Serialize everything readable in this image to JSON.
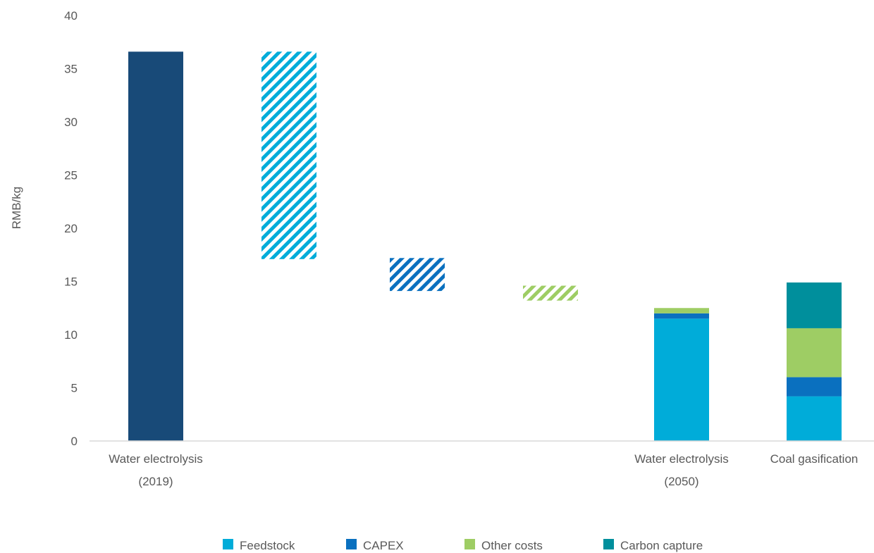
{
  "chart_data": {
    "type": "bar",
    "subtype": "waterfall",
    "ylabel": "RMB/kg",
    "ylim": [
      0,
      40
    ],
    "yticks": [
      0,
      5,
      10,
      15,
      20,
      25,
      30,
      35,
      40
    ],
    "grid": false,
    "legend_position": "bottom",
    "categories": [
      {
        "label": [
          "Water electrolysis",
          "(2019)"
        ]
      },
      {
        "label": []
      },
      {
        "label": []
      },
      {
        "label": []
      },
      {
        "label": [
          "Water electrolysis",
          "(2050)"
        ]
      },
      {
        "label": [
          "Coal gasification"
        ]
      }
    ],
    "bars": [
      {
        "kind": "total",
        "segments": [
          {
            "series": "Total",
            "from": 0,
            "to": 36.6
          }
        ]
      },
      {
        "kind": "decrease",
        "series": "Feedstock",
        "from": 17.1,
        "to": 36.6
      },
      {
        "kind": "decrease",
        "series": "CAPEX",
        "from": 14.1,
        "to": 17.2
      },
      {
        "kind": "decrease",
        "series": "Other costs",
        "from": 13.2,
        "to": 14.6
      },
      {
        "kind": "stacked",
        "segments": [
          {
            "series": "Feedstock",
            "from": 0,
            "to": 11.5
          },
          {
            "series": "CAPEX",
            "from": 11.5,
            "to": 12.0
          },
          {
            "series": "Other costs",
            "from": 12.0,
            "to": 12.5
          }
        ]
      },
      {
        "kind": "stacked",
        "segments": [
          {
            "series": "Feedstock",
            "from": 0,
            "to": 4.2
          },
          {
            "series": "CAPEX",
            "from": 4.2,
            "to": 6.0
          },
          {
            "series": "Other costs",
            "from": 6.0,
            "to": 10.6
          },
          {
            "series": "Carbon capture",
            "from": 10.6,
            "to": 14.9
          }
        ]
      }
    ],
    "legend": [
      {
        "name": "Feedstock",
        "color": "#00acd9"
      },
      {
        "name": "CAPEX",
        "color": "#0a70bf"
      },
      {
        "name": "Other costs",
        "color": "#9ecd64"
      },
      {
        "name": "Carbon capture",
        "color": "#008f9c"
      }
    ],
    "colors": {
      "Total": "#184a78",
      "Feedstock": "#00acd9",
      "CAPEX": "#0a70bf",
      "Other costs": "#9ecd64",
      "Carbon capture": "#008f9c"
    }
  }
}
